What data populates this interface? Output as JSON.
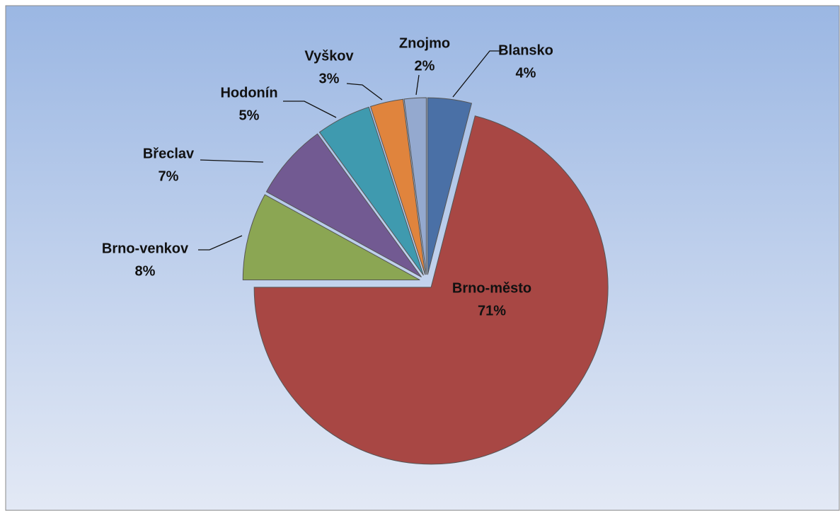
{
  "chart_data": {
    "type": "pie",
    "categories": [
      "Blansko",
      "Brno-město",
      "Brno-venkov",
      "Břeclav",
      "Hodonín",
      "Vyškov",
      "Znojmo"
    ],
    "values": [
      4,
      71,
      8,
      7,
      5,
      3,
      2
    ],
    "value_labels": [
      "4%",
      "71%",
      "8%",
      "7%",
      "5%",
      "3%",
      "2%"
    ],
    "colors": [
      "#4a70a6",
      "#a84744",
      "#8ba653",
      "#725a92",
      "#3f9aaf",
      "#e0843d",
      "#94a9cf"
    ]
  }
}
